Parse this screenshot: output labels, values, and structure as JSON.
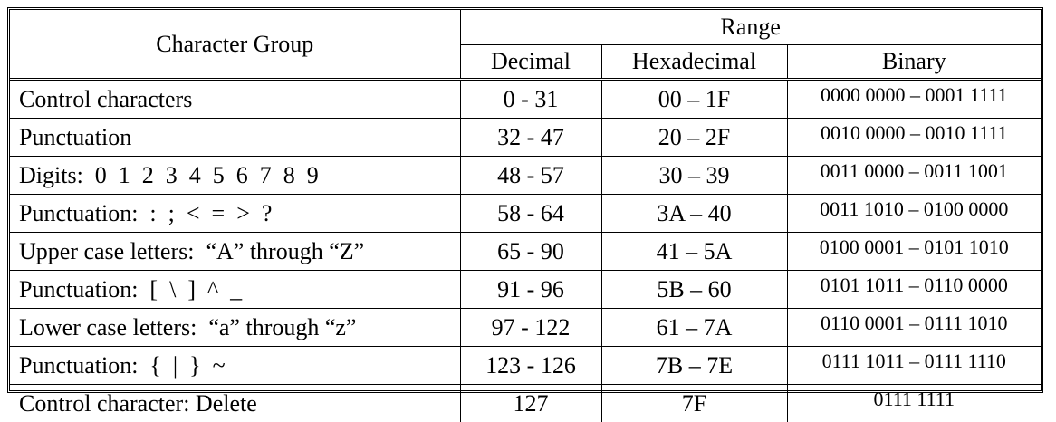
{
  "table": {
    "headers": {
      "group": "Character Group",
      "range": "Range",
      "decimal": "Decimal",
      "hexadecimal": "Hexadecimal",
      "binary": "Binary"
    },
    "rows": [
      [
        "Control characters",
        "0 - 31",
        "00 – 1F",
        "0000 0000 – 0001 1111"
      ],
      [
        "Punctuation",
        "32 - 47",
        "20 – 2F",
        "0010 0000 – 0010 1111"
      ],
      [
        "Digits:  0  1  2  3  4  5  6  7  8  9",
        "48 - 57",
        "30 – 39",
        "0011 0000 – 0011 1001"
      ],
      [
        "Punctuation:  :  ;  <  =  >  ?",
        "58 - 64",
        "3A – 40",
        "0011 1010 – 0100 0000"
      ],
      [
        "Upper case letters:  “A” through “Z”",
        "65 - 90",
        "41 – 5A",
        "0100 0001 – 0101 1010"
      ],
      [
        "Punctuation:  [  \\  ]  ^  _",
        "91 - 96",
        "5B – 60",
        "0101 1011 – 0110 0000"
      ],
      [
        "Lower case letters:  “a” through “z”",
        "97 - 122",
        "61 – 7A",
        "0110 0001 – 0111 1010"
      ],
      [
        "Punctuation:  {  |  }  ~",
        "123 - 126",
        "7B – 7E",
        "0111 1011 – 0111 1110"
      ],
      [
        "Control character: Delete",
        "127",
        "7F",
        "0111 1111"
      ]
    ]
  }
}
